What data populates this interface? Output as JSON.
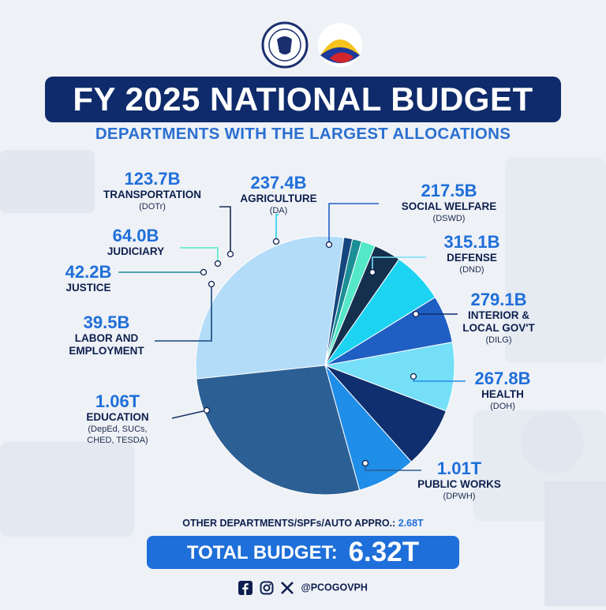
{
  "header": {
    "title": "FY 2025 NATIONAL BUDGET",
    "subtitle": "DEPARTMENTS WITH THE LARGEST ALLOCATIONS"
  },
  "chart_data": {
    "type": "pie",
    "title": "FY 2025 NATIONAL BUDGET",
    "subtitle": "DEPARTMENTS WITH THE LARGEST ALLOCATIONS",
    "slices": [
      {
        "id": "education",
        "value": 1060,
        "value_label": "1.06T",
        "name": "EDUCATION",
        "abbr": "(DepEd, SUCs, CHED, TESDA)",
        "color": "#b3dcf8"
      },
      {
        "id": "labor",
        "value": 39.5,
        "value_label": "39.5B",
        "name": "LABOR AND EMPLOYMENT",
        "abbr": "",
        "color": "#15467e"
      },
      {
        "id": "justice",
        "value": 42.2,
        "value_label": "42.2B",
        "name": "JUSTICE",
        "abbr": "",
        "color": "#1c8e96"
      },
      {
        "id": "judiciary",
        "value": 64.0,
        "value_label": "64.0B",
        "name": "JUDICIARY",
        "abbr": "",
        "color": "#55e8c8"
      },
      {
        "id": "transportation",
        "value": 123.7,
        "value_label": "123.7B",
        "name": "TRANSPORTATION",
        "abbr": "(DOTr)",
        "color": "#152f4f"
      },
      {
        "id": "agriculture",
        "value": 237.4,
        "value_label": "237.4B",
        "name": "AGRICULTURE",
        "abbr": "(DA)",
        "color": "#1cd4f2"
      },
      {
        "id": "social_welfare",
        "value": 217.5,
        "value_label": "217.5B",
        "name": "SOCIAL WELFARE",
        "abbr": "(DSWD)",
        "color": "#1f5fc4"
      },
      {
        "id": "defense",
        "value": 315.1,
        "value_label": "315.1B",
        "name": "DEFENSE",
        "abbr": "(DND)",
        "color": "#74dff7"
      },
      {
        "id": "interior",
        "value": 279.1,
        "value_label": "279.1B",
        "name": "INTERIOR & LOCAL GOV'T",
        "abbr": "(DILG)",
        "color": "#0f2f6e"
      },
      {
        "id": "health",
        "value": 267.8,
        "value_label": "267.8B",
        "name": "HEALTH",
        "abbr": "(DOH)",
        "color": "#1f8ee8"
      },
      {
        "id": "public_works",
        "value": 1010,
        "value_label": "1.01T",
        "name": "PUBLIC WORKS",
        "abbr": "(DPWH)",
        "color": "#2c5f94"
      }
    ]
  },
  "footer": {
    "other_label": "OTHER DEPARTMENTS/SPFs/AUTO APPRO.:",
    "other_value": "2.68T",
    "total_label": "TOTAL BUDGET:",
    "total_value": "6.32T",
    "handle": "@PCOGOVPH",
    "social_icons": [
      "facebook-icon",
      "instagram-icon",
      "x-icon"
    ]
  }
}
